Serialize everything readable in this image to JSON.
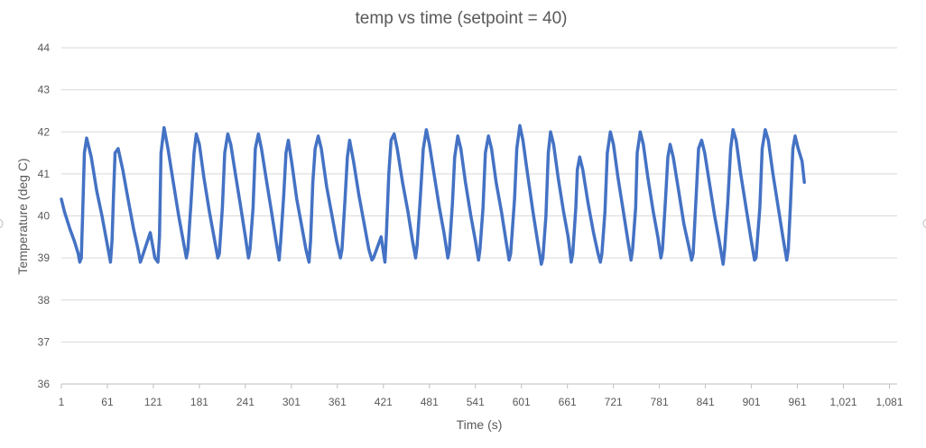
{
  "chart_data": {
    "type": "line",
    "title": "temp vs time (setpoint = 40)",
    "xlabel": "Time (s)",
    "ylabel": "Temperature (deg C)",
    "ylim": [
      36,
      44
    ],
    "xlim": [
      1,
      1091
    ],
    "y_ticks": [
      36,
      37,
      38,
      39,
      40,
      41,
      42,
      43,
      44
    ],
    "x_tick_values": [
      1,
      61,
      121,
      181,
      241,
      301,
      361,
      421,
      481,
      541,
      601,
      661,
      721,
      781,
      841,
      901,
      961,
      1021,
      1081
    ],
    "x_tick_labels": [
      "1",
      "61",
      "121",
      "181",
      "241",
      "301",
      "361",
      "421",
      "481",
      "541",
      "601",
      "661",
      "721",
      "781",
      "841",
      "901",
      "961",
      "1,021",
      "1,081"
    ],
    "grid": true,
    "legend": "none",
    "series": [
      {
        "color": "#4472c4",
        "points": [
          [
            1,
            40.4
          ],
          [
            5,
            40.1
          ],
          [
            12,
            39.7
          ],
          [
            18,
            39.4
          ],
          [
            23,
            39.1
          ],
          [
            25,
            38.9
          ],
          [
            27,
            39.0
          ],
          [
            29,
            40.2
          ],
          [
            31,
            41.5
          ],
          [
            34,
            41.85
          ],
          [
            40,
            41.4
          ],
          [
            47,
            40.6
          ],
          [
            54,
            40.0
          ],
          [
            61,
            39.3
          ],
          [
            65,
            38.9
          ],
          [
            67,
            39.4
          ],
          [
            69,
            40.5
          ],
          [
            71,
            41.5
          ],
          [
            75,
            41.6
          ],
          [
            81,
            41.1
          ],
          [
            88,
            40.4
          ],
          [
            95,
            39.7
          ],
          [
            101,
            39.2
          ],
          [
            104,
            38.9
          ],
          [
            106,
            39.0
          ],
          [
            117,
            39.6
          ],
          [
            123,
            39.0
          ],
          [
            127,
            38.9
          ],
          [
            129,
            39.5
          ],
          [
            131,
            41.5
          ],
          [
            135,
            42.1
          ],
          [
            140,
            41.6
          ],
          [
            147,
            40.8
          ],
          [
            154,
            40.0
          ],
          [
            160,
            39.4
          ],
          [
            164,
            39.0
          ],
          [
            166,
            39.2
          ],
          [
            170,
            40.3
          ],
          [
            174,
            41.5
          ],
          [
            177,
            41.95
          ],
          [
            181,
            41.7
          ],
          [
            187,
            40.9
          ],
          [
            194,
            40.1
          ],
          [
            200,
            39.5
          ],
          [
            205,
            39.0
          ],
          [
            207,
            39.1
          ],
          [
            211,
            40.2
          ],
          [
            214,
            41.5
          ],
          [
            218,
            41.95
          ],
          [
            222,
            41.7
          ],
          [
            228,
            41.0
          ],
          [
            235,
            40.2
          ],
          [
            241,
            39.5
          ],
          [
            245,
            39.0
          ],
          [
            247,
            39.2
          ],
          [
            251,
            40.2
          ],
          [
            254,
            41.6
          ],
          [
            258,
            41.95
          ],
          [
            262,
            41.6
          ],
          [
            268,
            40.9
          ],
          [
            275,
            40.1
          ],
          [
            281,
            39.4
          ],
          [
            285,
            38.95
          ],
          [
            287,
            39.4
          ],
          [
            291,
            40.5
          ],
          [
            294,
            41.5
          ],
          [
            297,
            41.8
          ],
          [
            302,
            41.2
          ],
          [
            308,
            40.4
          ],
          [
            315,
            39.7
          ],
          [
            320,
            39.2
          ],
          [
            324,
            38.9
          ],
          [
            326,
            39.4
          ],
          [
            329,
            40.8
          ],
          [
            332,
            41.6
          ],
          [
            336,
            41.9
          ],
          [
            340,
            41.6
          ],
          [
            347,
            40.7
          ],
          [
            354,
            40.0
          ],
          [
            360,
            39.4
          ],
          [
            365,
            39.0
          ],
          [
            367,
            39.2
          ],
          [
            371,
            40.4
          ],
          [
            374,
            41.4
          ],
          [
            377,
            41.8
          ],
          [
            382,
            41.3
          ],
          [
            389,
            40.5
          ],
          [
            396,
            39.8
          ],
          [
            402,
            39.2
          ],
          [
            406,
            38.95
          ],
          [
            408,
            39.0
          ],
          [
            418,
            39.5
          ],
          [
            423,
            38.9
          ],
          [
            425,
            39.6
          ],
          [
            428,
            41.0
          ],
          [
            431,
            41.8
          ],
          [
            435,
            41.95
          ],
          [
            439,
            41.6
          ],
          [
            446,
            40.8
          ],
          [
            453,
            40.1
          ],
          [
            459,
            39.4
          ],
          [
            463,
            39.0
          ],
          [
            465,
            39.3
          ],
          [
            469,
            40.4
          ],
          [
            473,
            41.6
          ],
          [
            477,
            42.05
          ],
          [
            481,
            41.7
          ],
          [
            487,
            41.0
          ],
          [
            494,
            40.2
          ],
          [
            500,
            39.6
          ],
          [
            505,
            39.0
          ],
          [
            507,
            39.2
          ],
          [
            511,
            40.3
          ],
          [
            514,
            41.4
          ],
          [
            518,
            41.9
          ],
          [
            522,
            41.6
          ],
          [
            528,
            40.8
          ],
          [
            535,
            40.0
          ],
          [
            541,
            39.4
          ],
          [
            545,
            38.95
          ],
          [
            547,
            39.2
          ],
          [
            551,
            40.2
          ],
          [
            554,
            41.5
          ],
          [
            558,
            41.9
          ],
          [
            562,
            41.6
          ],
          [
            568,
            40.8
          ],
          [
            575,
            40.1
          ],
          [
            581,
            39.4
          ],
          [
            585,
            38.95
          ],
          [
            587,
            39.1
          ],
          [
            592,
            40.4
          ],
          [
            595,
            41.6
          ],
          [
            599,
            42.15
          ],
          [
            603,
            41.8
          ],
          [
            609,
            41.0
          ],
          [
            616,
            40.1
          ],
          [
            622,
            39.4
          ],
          [
            627,
            38.85
          ],
          [
            629,
            39.0
          ],
          [
            633,
            40.0
          ],
          [
            636,
            41.5
          ],
          [
            639,
            42.0
          ],
          [
            643,
            41.7
          ],
          [
            649,
            40.9
          ],
          [
            656,
            40.1
          ],
          [
            662,
            39.5
          ],
          [
            666,
            38.9
          ],
          [
            668,
            39.1
          ],
          [
            672,
            40.2
          ],
          [
            674,
            41.1
          ],
          [
            677,
            41.4
          ],
          [
            681,
            41.1
          ],
          [
            688,
            40.3
          ],
          [
            695,
            39.6
          ],
          [
            701,
            39.1
          ],
          [
            704,
            38.9
          ],
          [
            706,
            39.1
          ],
          [
            710,
            40.1
          ],
          [
            713,
            41.5
          ],
          [
            717,
            42.0
          ],
          [
            721,
            41.7
          ],
          [
            727,
            40.9
          ],
          [
            734,
            40.1
          ],
          [
            740,
            39.4
          ],
          [
            744,
            38.95
          ],
          [
            746,
            39.2
          ],
          [
            750,
            40.2
          ],
          [
            752,
            41.5
          ],
          [
            756,
            42.0
          ],
          [
            760,
            41.7
          ],
          [
            766,
            40.9
          ],
          [
            773,
            40.1
          ],
          [
            779,
            39.5
          ],
          [
            783,
            39.0
          ],
          [
            785,
            39.2
          ],
          [
            789,
            40.4
          ],
          [
            792,
            41.4
          ],
          [
            795,
            41.7
          ],
          [
            799,
            41.4
          ],
          [
            806,
            40.6
          ],
          [
            813,
            39.8
          ],
          [
            819,
            39.3
          ],
          [
            823,
            38.95
          ],
          [
            825,
            39.1
          ],
          [
            829,
            40.5
          ],
          [
            832,
            41.6
          ],
          [
            836,
            41.8
          ],
          [
            840,
            41.5
          ],
          [
            846,
            40.8
          ],
          [
            853,
            40.0
          ],
          [
            859,
            39.4
          ],
          [
            864,
            38.85
          ],
          [
            866,
            39.2
          ],
          [
            870,
            40.3
          ],
          [
            874,
            41.6
          ],
          [
            877,
            42.05
          ],
          [
            881,
            41.8
          ],
          [
            887,
            41.0
          ],
          [
            894,
            40.2
          ],
          [
            900,
            39.5
          ],
          [
            905,
            38.95
          ],
          [
            907,
            39.0
          ],
          [
            912,
            40.2
          ],
          [
            915,
            41.6
          ],
          [
            919,
            42.05
          ],
          [
            923,
            41.8
          ],
          [
            929,
            41.0
          ],
          [
            936,
            40.2
          ],
          [
            942,
            39.5
          ],
          [
            947,
            38.95
          ],
          [
            949,
            39.2
          ],
          [
            952,
            40.3
          ],
          [
            955,
            41.6
          ],
          [
            958,
            41.9
          ],
          [
            962,
            41.6
          ],
          [
            967,
            41.3
          ],
          [
            970,
            40.8
          ]
        ]
      }
    ]
  },
  "edge_handles": {
    "left_symbol": "",
    "right_symbol": ""
  }
}
